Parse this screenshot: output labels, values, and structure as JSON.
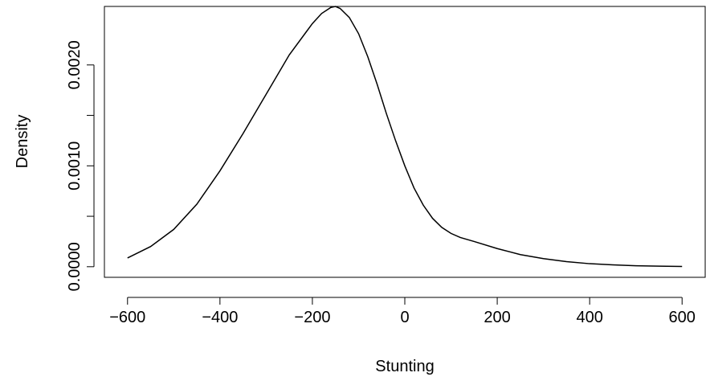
{
  "chart_data": {
    "type": "line",
    "title": "",
    "xlabel": "Stunting",
    "ylabel": "Density",
    "xlim": [
      -650,
      650
    ],
    "ylim": [
      -0.000105,
      0.00258
    ],
    "xticks": [
      -600,
      -400,
      -200,
      0,
      200,
      400,
      600
    ],
    "xtick_labels": [
      "−600",
      "−400",
      "−200",
      "0",
      "200",
      "400",
      "600"
    ],
    "yticks": [
      0.0,
      0.0005,
      0.001,
      0.0015,
      0.002
    ],
    "ytick_labels": [
      "0.0000",
      "",
      "0.0010",
      "",
      "0.0020"
    ],
    "grid": false,
    "series": [
      {
        "x": [
          -600,
          -550,
          -500,
          -450,
          -400,
          -350,
          -300,
          -250,
          -200,
          -180,
          -160,
          -150,
          -140,
          -120,
          -100,
          -80,
          -60,
          -40,
          -20,
          0,
          20,
          40,
          60,
          80,
          100,
          120,
          150,
          200,
          250,
          300,
          350,
          400,
          450,
          500,
          550,
          600
        ],
        "y": [
          8.7e-05,
          0.0002,
          0.00037,
          0.00062,
          0.00095,
          0.00132,
          0.00171,
          0.0021,
          0.00241,
          0.00251,
          0.00257,
          0.00258,
          0.00256,
          0.00247,
          0.00231,
          0.00208,
          0.00181,
          0.00152,
          0.00125,
          0.001,
          0.00078,
          0.00061,
          0.00048,
          0.00039,
          0.00033,
          0.00029,
          0.00025,
          0.00018,
          0.00012,
          8e-05,
          5e-05,
          3e-05,
          1.8e-05,
          1e-05,
          6e-06,
          3e-06
        ]
      }
    ]
  }
}
